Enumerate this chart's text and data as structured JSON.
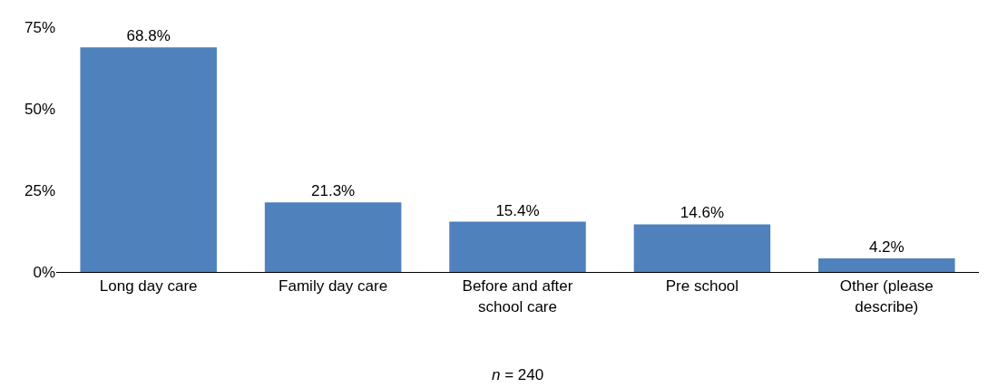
{
  "chart_data": {
    "type": "bar",
    "categories": [
      "Long day care",
      "Family day care",
      "Before and after school care",
      "Pre school",
      "Other (please describe)"
    ],
    "values": [
      68.8,
      21.3,
      15.4,
      14.6,
      4.2
    ],
    "value_labels": [
      "68.8%",
      "21.3%",
      "15.4%",
      "14.6%",
      "4.2%"
    ],
    "color": "#4f81bd",
    "ylim": [
      0,
      75
    ],
    "yticks": [
      {
        "value": 0,
        "label": "0%"
      },
      {
        "value": 25,
        "label": "25%"
      },
      {
        "value": 50,
        "label": "50%"
      },
      {
        "value": 75,
        "label": "75%"
      }
    ],
    "legend": false,
    "annotations": [
      "n = 240"
    ]
  }
}
